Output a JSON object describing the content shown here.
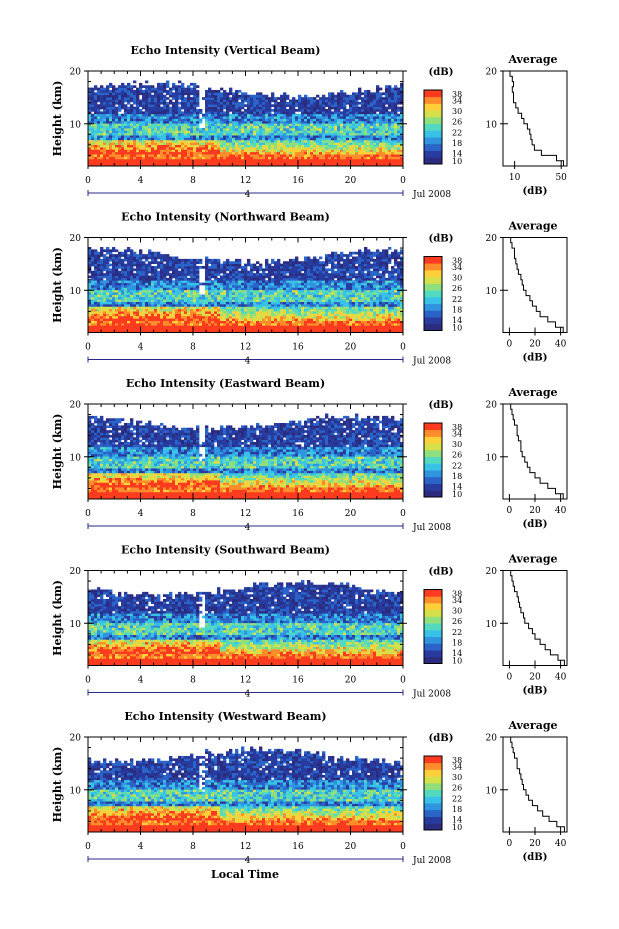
{
  "figure": {
    "xlabel": "Local Time",
    "date_label": "Jul 2008",
    "day_marker": "4",
    "colorbar_unit": "(dB)",
    "colorbar_ticks": [
      "10",
      "14",
      "18",
      "22",
      "26",
      "30",
      "34",
      "38"
    ],
    "colormap": [
      "#2b2c7f",
      "#283b9f",
      "#2a64c8",
      "#2f95e0",
      "#39c2e8",
      "#52d9c0",
      "#8fe07c",
      "#d6e04a",
      "#ffd03a",
      "#ff8c2a",
      "#ff3b1f"
    ]
  },
  "chart_data": [
    {
      "type": "heatmap",
      "title": "Echo Intensity (Vertical Beam)",
      "ylabel": "Height (km)",
      "xlabel": "",
      "x_ticks": [
        "0",
        "4",
        "8",
        "12",
        "16",
        "20",
        "0"
      ],
      "y_ticks": [
        "10",
        "20"
      ],
      "xlim": [
        0,
        24
      ],
      "ylim": [
        2,
        20
      ],
      "zlim": [
        10,
        38
      ],
      "z_unit": "dB",
      "profile": {
        "title": "Average",
        "xlabel": "(dB)",
        "x_ticks": [
          "10",
          "50"
        ],
        "y_ticks": [
          "10",
          "20"
        ],
        "xlim": [
          0,
          55
        ],
        "heights": [
          2,
          3,
          4,
          5,
          6,
          7,
          8,
          9,
          10,
          11,
          12,
          13,
          14,
          15,
          16,
          17,
          18,
          19,
          20
        ],
        "values": [
          52,
          46,
          33,
          27,
          25,
          24,
          23,
          21,
          18,
          16,
          13,
          11,
          9,
          9,
          8,
          9,
          8,
          6,
          5
        ]
      }
    },
    {
      "type": "heatmap",
      "title": "Echo Intensity (Northward Beam)",
      "ylabel": "Height (km)",
      "xlabel": "",
      "x_ticks": [
        "0",
        "4",
        "8",
        "12",
        "16",
        "20",
        "0"
      ],
      "y_ticks": [
        "10",
        "20"
      ],
      "xlim": [
        0,
        24
      ],
      "ylim": [
        2,
        20
      ],
      "zlim": [
        10,
        38
      ],
      "z_unit": "dB",
      "profile": {
        "title": "Average",
        "xlabel": "(dB)",
        "x_ticks": [
          "0",
          "20",
          "40"
        ],
        "y_ticks": [
          "10",
          "20"
        ],
        "xlim": [
          -5,
          45
        ],
        "heights": [
          2,
          3,
          4,
          5,
          6,
          7,
          8,
          9,
          10,
          11,
          12,
          13,
          14,
          15,
          16,
          17,
          18,
          19,
          20
        ],
        "values": [
          42,
          36,
          30,
          24,
          21,
          18,
          16,
          13,
          11,
          10,
          9,
          7,
          6,
          5,
          4,
          4,
          2,
          1,
          0
        ]
      }
    },
    {
      "type": "heatmap",
      "title": "Echo Intensity (Eastward Beam)",
      "ylabel": "Height (km)",
      "xlabel": "",
      "x_ticks": [
        "0",
        "4",
        "8",
        "12",
        "16",
        "20",
        "0"
      ],
      "y_ticks": [
        "10",
        "20"
      ],
      "xlim": [
        0,
        24
      ],
      "ylim": [
        2,
        20
      ],
      "zlim": [
        10,
        38
      ],
      "z_unit": "dB",
      "profile": {
        "title": "Average",
        "xlabel": "(dB)",
        "x_ticks": [
          "0",
          "20",
          "40"
        ],
        "y_ticks": [
          "10",
          "20"
        ],
        "xlim": [
          -5,
          45
        ],
        "heights": [
          2,
          3,
          4,
          5,
          6,
          7,
          8,
          9,
          10,
          11,
          12,
          13,
          14,
          15,
          16,
          17,
          18,
          19,
          20
        ],
        "values": [
          42,
          36,
          30,
          24,
          20,
          16,
          14,
          12,
          10,
          9,
          9,
          7,
          6,
          6,
          4,
          3,
          2,
          1,
          0
        ]
      }
    },
    {
      "type": "heatmap",
      "title": "Echo Intensity (Southward Beam)",
      "ylabel": "Height (km)",
      "xlabel": "",
      "x_ticks": [
        "0",
        "4",
        "8",
        "12",
        "16",
        "20",
        "0"
      ],
      "y_ticks": [
        "10",
        "20"
      ],
      "xlim": [
        0,
        24
      ],
      "ylim": [
        2,
        20
      ],
      "zlim": [
        10,
        38
      ],
      "z_unit": "dB",
      "profile": {
        "title": "Average",
        "xlabel": "(dB)",
        "x_ticks": [
          "0",
          "20",
          "40"
        ],
        "y_ticks": [
          "10",
          "20"
        ],
        "xlim": [
          -5,
          45
        ],
        "heights": [
          2,
          3,
          4,
          5,
          6,
          7,
          8,
          9,
          10,
          11,
          12,
          13,
          14,
          15,
          16,
          17,
          18,
          19,
          20
        ],
        "values": [
          43,
          38,
          32,
          28,
          24,
          20,
          18,
          15,
          12,
          11,
          9,
          8,
          7,
          6,
          4,
          3,
          2,
          1,
          0
        ]
      }
    },
    {
      "type": "heatmap",
      "title": "Echo Intensity (Westward Beam)",
      "ylabel": "Height (km)",
      "xlabel": "Local Time",
      "x_ticks": [
        "0",
        "4",
        "8",
        "12",
        "16",
        "20",
        "0"
      ],
      "y_ticks": [
        "10",
        "20"
      ],
      "xlim": [
        0,
        24
      ],
      "ylim": [
        2,
        20
      ],
      "zlim": [
        10,
        38
      ],
      "z_unit": "dB",
      "profile": {
        "title": "Average",
        "xlabel": "(dB)",
        "x_ticks": [
          "0",
          "20",
          "40"
        ],
        "y_ticks": [
          "10",
          "20"
        ],
        "xlim": [
          -5,
          45
        ],
        "heights": [
          2,
          3,
          4,
          5,
          6,
          7,
          8,
          9,
          10,
          11,
          12,
          13,
          14,
          15,
          16,
          17,
          18,
          19,
          20
        ],
        "values": [
          43,
          37,
          31,
          26,
          22,
          18,
          15,
          13,
          11,
          10,
          9,
          8,
          6,
          6,
          4,
          3,
          2,
          1,
          0
        ]
      }
    }
  ]
}
